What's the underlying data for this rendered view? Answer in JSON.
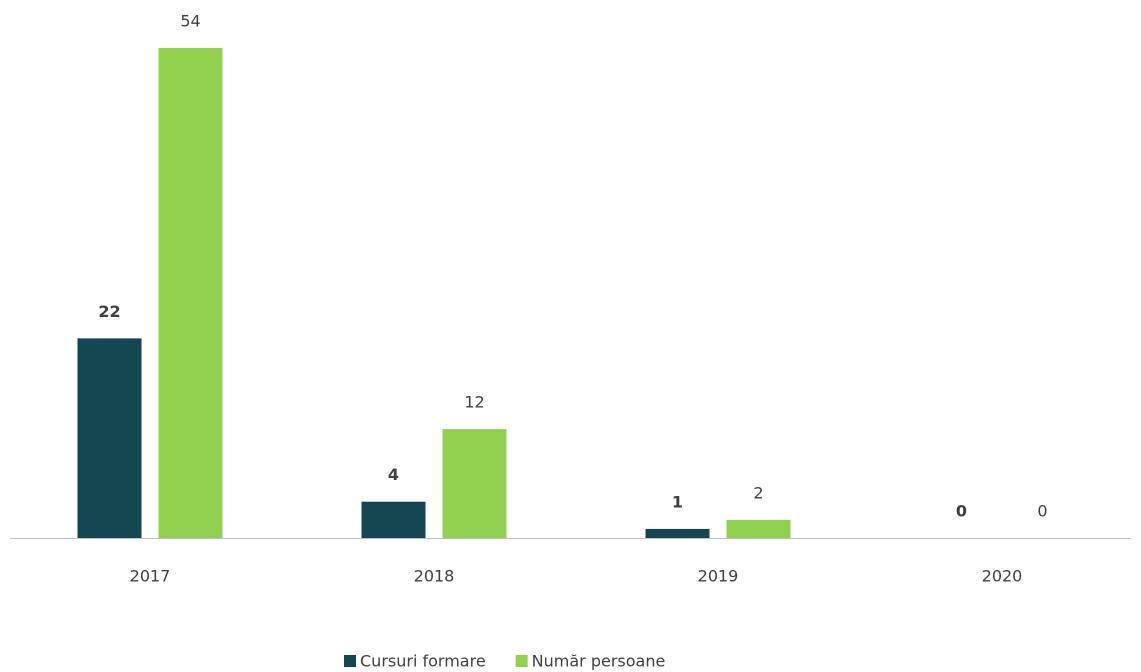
{
  "chart_data": {
    "type": "bar",
    "categories": [
      "2017",
      "2018",
      "2019",
      "2020"
    ],
    "series": [
      {
        "name": "Cursuri formare",
        "color": "#154753",
        "values": [
          22,
          4,
          1,
          0
        ]
      },
      {
        "name": "Număr persoane",
        "color": "#92d050",
        "values": [
          54,
          12,
          2,
          0
        ]
      }
    ],
    "legend": "bottom"
  }
}
